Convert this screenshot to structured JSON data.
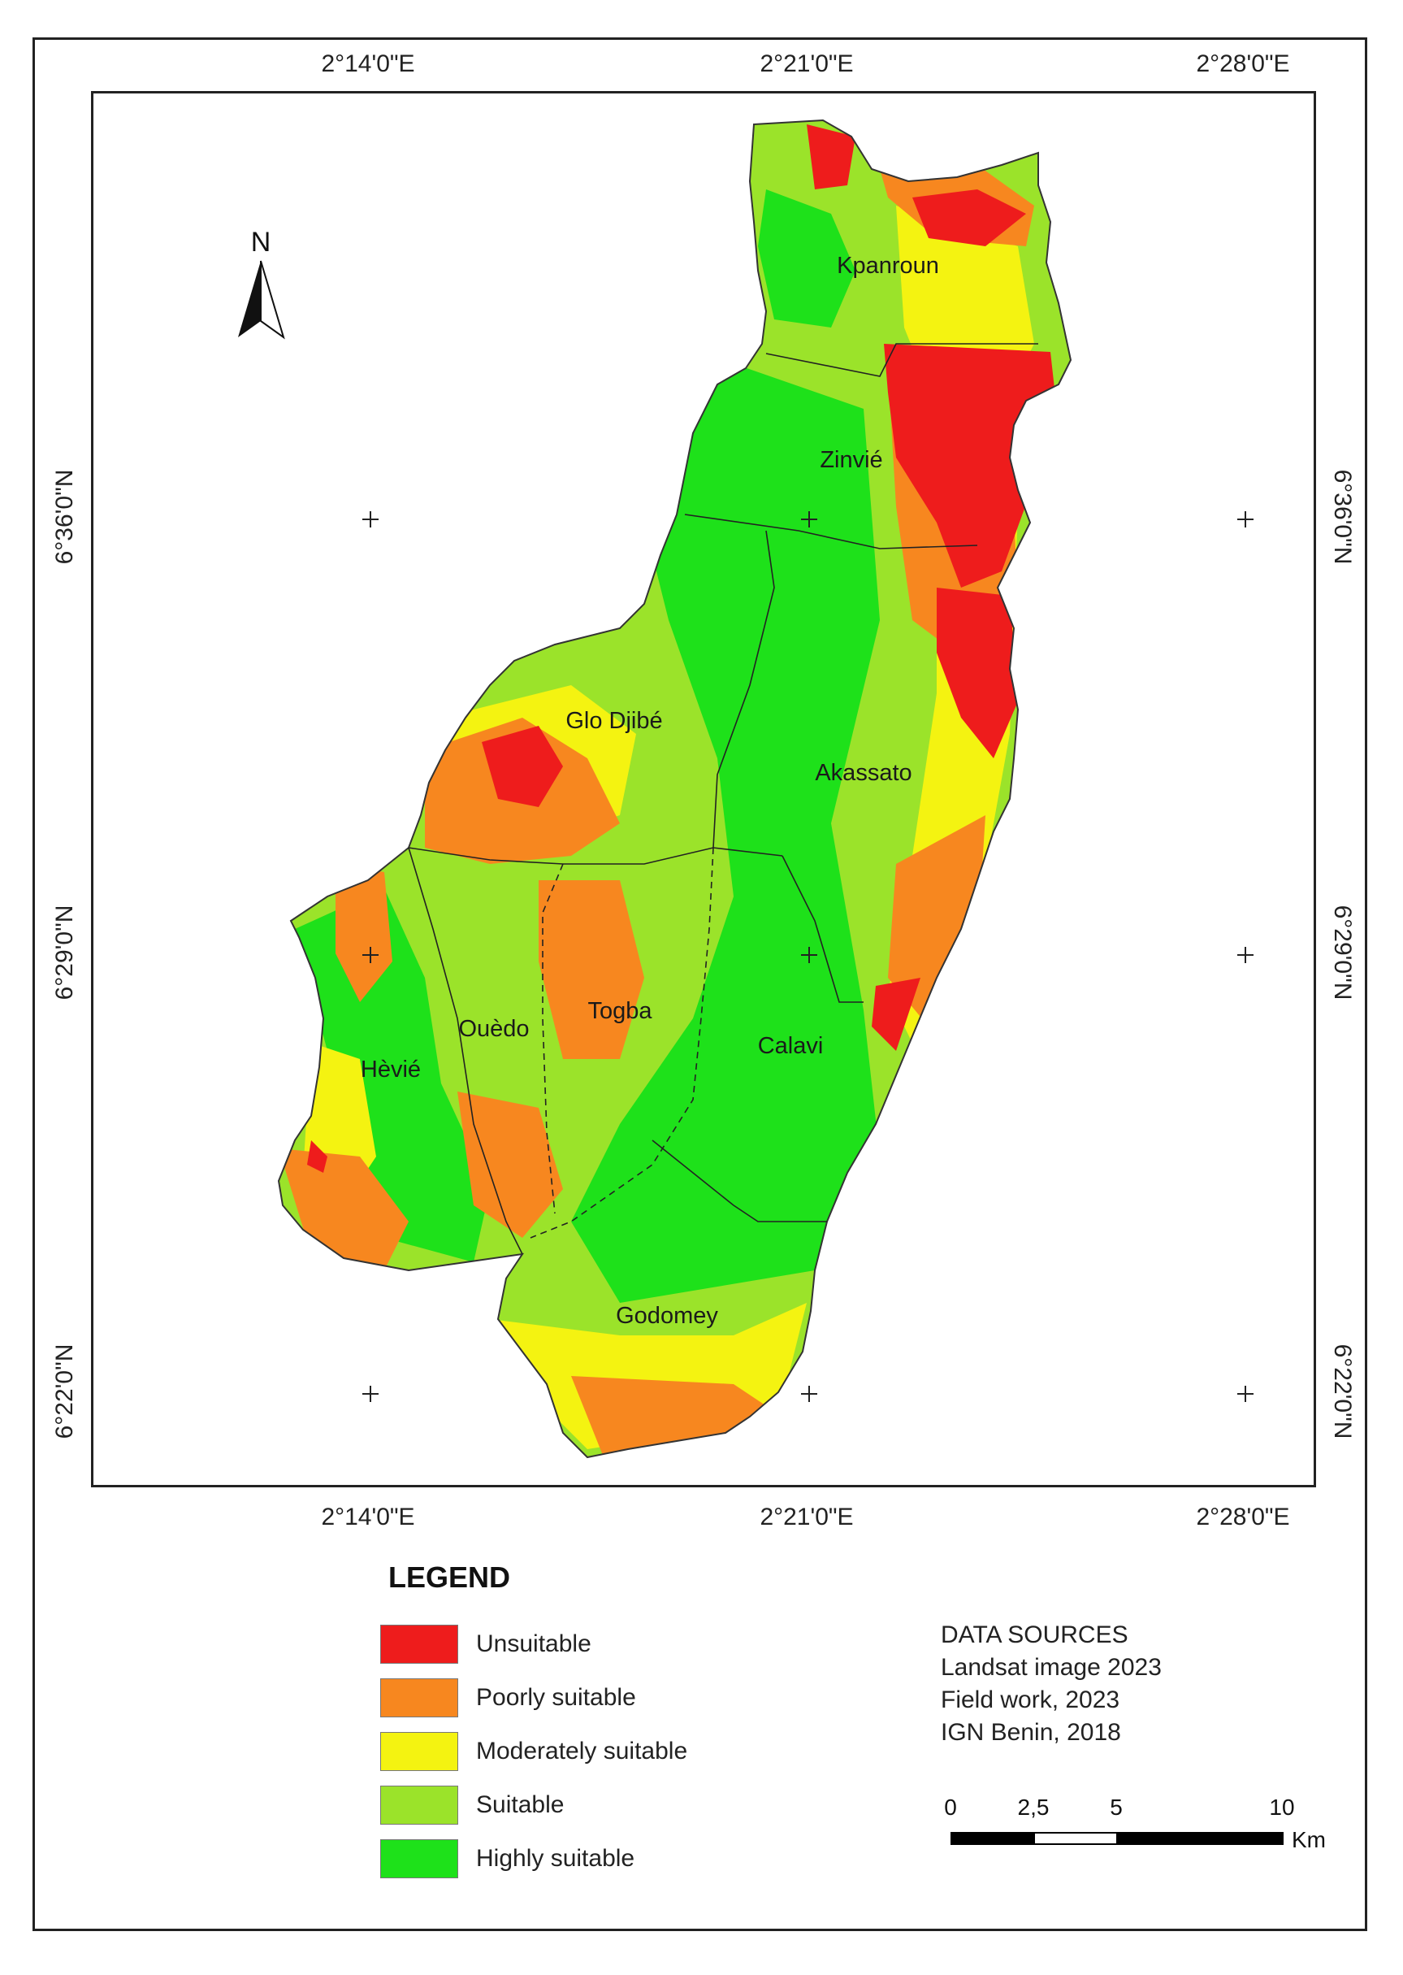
{
  "map": {
    "lon_labels": [
      "2°14'0\"E",
      "2°21'0\"E",
      "2°28'0\"E"
    ],
    "lat_labels": [
      "6°36'0\"N",
      "6°29'0\"N",
      "6°22'0\"N"
    ],
    "north_label": "N",
    "districts": [
      "Kpanroun",
      "Zinvié",
      "Glo Djibé",
      "Akassato",
      "Ouèdo",
      "Togba",
      "Hèvié",
      "Calavi",
      "Godomey"
    ],
    "classes_colors": {
      "unsuitable": "#ee1c1c",
      "poorly": "#f7871f",
      "moderately": "#f4f311",
      "suitable": "#9be32a",
      "highly": "#1ee11a"
    }
  },
  "legend": {
    "title": "LEGEND",
    "items": [
      {
        "label": "Unsuitable",
        "color": "#ee1c1c"
      },
      {
        "label": "Poorly suitable",
        "color": "#f7871f"
      },
      {
        "label": "Moderately suitable",
        "color": "#f4f311"
      },
      {
        "label": "Suitable",
        "color": "#9be32a"
      },
      {
        "label": "Highly suitable",
        "color": "#1ee11a"
      }
    ]
  },
  "sources": [
    "DATA SOURCES",
    "Landsat image 2023",
    "Field work, 2023",
    "IGN Benin, 2018"
  ],
  "scalebar": {
    "ticks": [
      "0",
      "2,5",
      "5",
      "10"
    ],
    "unit": "Km"
  }
}
